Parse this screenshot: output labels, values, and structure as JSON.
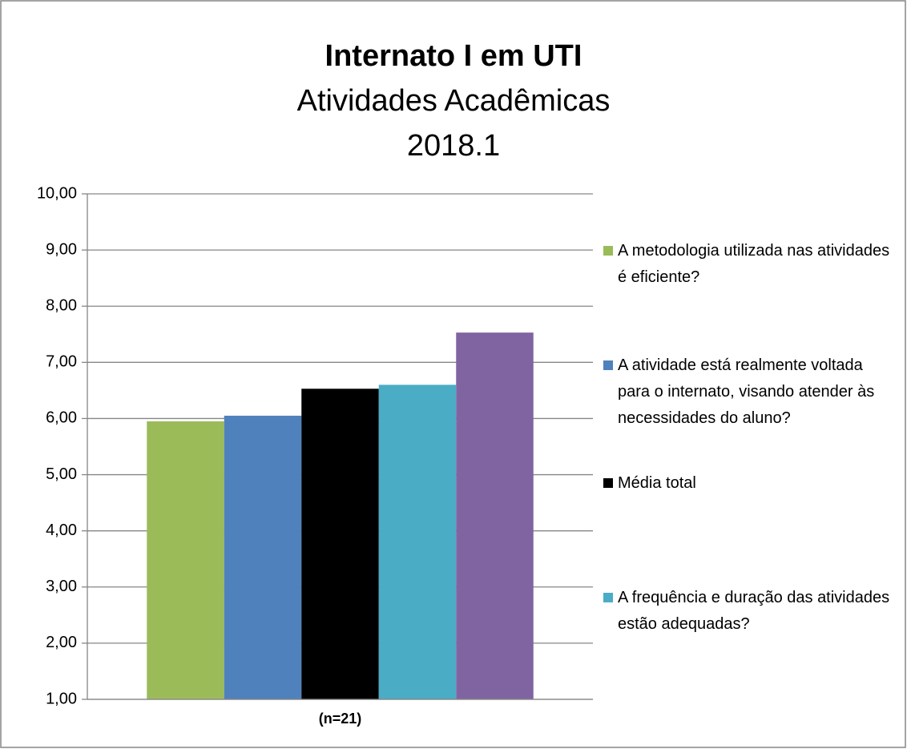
{
  "chart_data": {
    "type": "bar",
    "title": "Internato I em UTI",
    "subtitle": [
      "Atividades Acadêmicas",
      "2018.1"
    ],
    "categories": [
      "(n=21)"
    ],
    "series": [
      {
        "name": "A metodologia utilizada nas atividades é eficiente?",
        "color": "#9bbb59",
        "values": [
          5.95
        ]
      },
      {
        "name": "A atividade está realmente voltada para o internato, visando atender às necessidades do aluno?",
        "color": "#4f81bd",
        "values": [
          6.05
        ]
      },
      {
        "name": "Média total",
        "color": "#000000",
        "values": [
          6.53
        ]
      },
      {
        "name": "A frequência e duração das atividades estão adequadas?",
        "color": "#4bacc6",
        "values": [
          6.6
        ]
      },
      {
        "name": null,
        "color": "#8064a2",
        "values": [
          7.53
        ]
      }
    ],
    "ylim": [
      1,
      10
    ],
    "yticks": [
      {
        "value": 1,
        "label": "1,00"
      },
      {
        "value": 2,
        "label": "2,00"
      },
      {
        "value": 3,
        "label": "3,00"
      },
      {
        "value": 4,
        "label": "4,00"
      },
      {
        "value": 5,
        "label": "5,00"
      },
      {
        "value": 6,
        "label": "6,00"
      },
      {
        "value": 7,
        "label": "7,00"
      },
      {
        "value": 8,
        "label": "8,00"
      },
      {
        "value": 9,
        "label": "9,00"
      },
      {
        "value": 10,
        "label": "10,00"
      }
    ],
    "grid": true,
    "legend": "right"
  }
}
